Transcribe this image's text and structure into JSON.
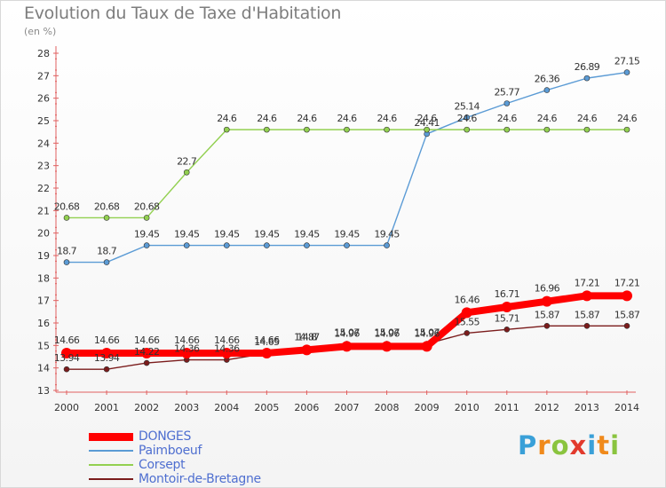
{
  "title": "Evolution du Taux de Taxe d'Habitation",
  "unit_label": "(en %)",
  "brand": {
    "letters": [
      "P",
      "r",
      "o",
      "x",
      "i",
      "t",
      "i"
    ],
    "colors": [
      "#3aa0d8",
      "#f08a1c",
      "#8ac43f",
      "#e23a2d",
      "#3aa0d8",
      "#f08a1c",
      "#8ac43f"
    ]
  },
  "chart_data": {
    "type": "line",
    "title": "Evolution du Taux de Taxe d'Habitation",
    "ylabel": "(en %)",
    "xlabel": "",
    "x": [
      "2000",
      "2001",
      "2002",
      "2003",
      "2004",
      "2005",
      "2006",
      "2007",
      "2008",
      "2009",
      "2010",
      "2011",
      "2012",
      "2013",
      "2014"
    ],
    "ylim": [
      13,
      28
    ],
    "yticks": [
      "13",
      "14",
      "15",
      "16",
      "17",
      "18",
      "19",
      "20",
      "21",
      "22",
      "23",
      "24",
      "25",
      "26",
      "27",
      "28"
    ],
    "grid": false,
    "legend_position": "bottom-left",
    "series": [
      {
        "name": "DONGES",
        "color": "#ff0000",
        "emphasis": true,
        "values": [
          14.66,
          14.66,
          14.66,
          14.66,
          14.66,
          14.66,
          14.8,
          14.96,
          14.96,
          14.96,
          16.46,
          16.71,
          16.96,
          17.21,
          17.21
        ],
        "labels": [
          "14.66",
          "14.66",
          "14.66",
          "14.66",
          "14.66",
          "14.66",
          "14.8",
          "14.96",
          "14.96",
          "14.96",
          "16.46",
          "16.71",
          "16.96",
          "17.21",
          "17.21"
        ]
      },
      {
        "name": "Paimboeuf",
        "color": "#5b9bd5",
        "emphasis": false,
        "values": [
          18.7,
          18.7,
          19.45,
          19.45,
          19.45,
          19.45,
          19.45,
          19.45,
          19.45,
          24.41,
          25.14,
          25.77,
          26.36,
          26.89,
          27.15
        ],
        "labels": [
          "18.7",
          "18.7",
          "19.45",
          "19.45",
          "19.45",
          "19.45",
          "19.45",
          "19.45",
          "19.45",
          "24.41",
          "25.14",
          "25.77",
          "26.36",
          "26.89",
          "27.15"
        ]
      },
      {
        "name": "Corsept",
        "color": "#92d050",
        "emphasis": false,
        "values": [
          20.68,
          20.68,
          20.68,
          22.7,
          24.6,
          24.6,
          24.6,
          24.6,
          24.6,
          24.6,
          24.6,
          24.6,
          24.6,
          24.6,
          24.6
        ],
        "labels": [
          "20.68",
          "20.68",
          "20.68",
          "22.7",
          "24.6",
          "24.6",
          "24.6",
          "24.6",
          "24.6",
          "24.6",
          "24.6",
          "24.6",
          "24.6",
          "24.6",
          "24.6"
        ]
      },
      {
        "name": "Montoir-de-Bretagne",
        "color": "#7b1c1c",
        "emphasis": false,
        "values": [
          13.94,
          13.94,
          14.22,
          14.36,
          14.36,
          14.65,
          14.87,
          15.07,
          15.07,
          15.07,
          15.55,
          15.71,
          15.87,
          15.87,
          15.87
        ],
        "labels": [
          "13.94",
          "13.94",
          "14.22",
          "14.36",
          "14.36",
          "14.65",
          "14.87",
          "15.07",
          "15.07",
          "15.07",
          "15.55",
          "15.71",
          "15.87",
          "15.87",
          "15.87"
        ]
      }
    ]
  }
}
